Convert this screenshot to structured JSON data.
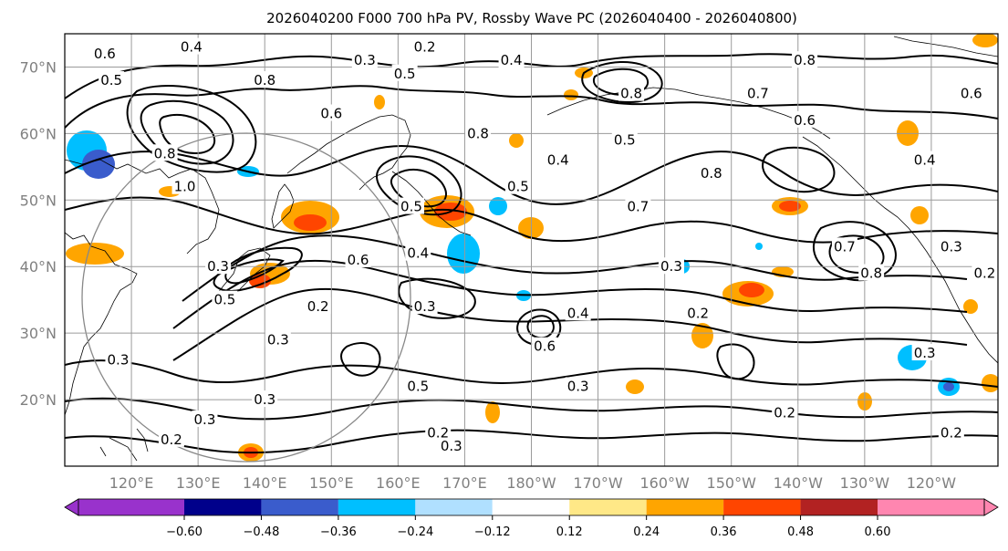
{
  "title": "2026040200 F000 700 hPa PV, Rossby Wave PC (2026040400 - 2026040800)",
  "map": {
    "lon_range": [
      110,
      250
    ],
    "lat_range": [
      10,
      75
    ],
    "lat_labels": [
      "20°N",
      "30°N",
      "40°N",
      "50°N",
      "60°N",
      "70°N"
    ],
    "lat_values": [
      20,
      30,
      40,
      50,
      60,
      70
    ],
    "lon_labels": [
      "120°E",
      "130°E",
      "140°E",
      "150°E",
      "160°E",
      "170°E",
      "180°W",
      "170°W",
      "160°W",
      "150°W",
      "140°W",
      "130°W",
      "120°W"
    ],
    "lon_values": [
      120,
      130,
      140,
      150,
      160,
      170,
      180,
      190,
      200,
      210,
      220,
      230,
      240
    ]
  },
  "contour_labels": [
    {
      "text": "0.6",
      "lon": 116,
      "lat": 72
    },
    {
      "text": "0.4",
      "lon": 129,
      "lat": 73
    },
    {
      "text": "0.5",
      "lon": 117,
      "lat": 68
    },
    {
      "text": "0.3",
      "lon": 155,
      "lat": 71
    },
    {
      "text": "0.2",
      "lon": 164,
      "lat": 73
    },
    {
      "text": "0.4",
      "lon": 177,
      "lat": 71
    },
    {
      "text": "0.5",
      "lon": 161,
      "lat": 69
    },
    {
      "text": "0.6",
      "lon": 150,
      "lat": 63
    },
    {
      "text": "0.8",
      "lon": 140,
      "lat": 68
    },
    {
      "text": "0.8",
      "lon": 125,
      "lat": 57
    },
    {
      "text": "1.0",
      "lon": 128,
      "lat": 52
    },
    {
      "text": "0.8",
      "lon": 195,
      "lat": 66
    },
    {
      "text": "0.8",
      "lon": 221,
      "lat": 71
    },
    {
      "text": "0.7",
      "lon": 214,
      "lat": 66
    },
    {
      "text": "0.6",
      "lon": 221,
      "lat": 62
    },
    {
      "text": "0.8",
      "lon": 172,
      "lat": 60
    },
    {
      "text": "0.4",
      "lon": 184,
      "lat": 56
    },
    {
      "text": "0.5",
      "lon": 194,
      "lat": 59
    },
    {
      "text": "0.8",
      "lon": 207,
      "lat": 54
    },
    {
      "text": "0.5",
      "lon": 162,
      "lat": 49
    },
    {
      "text": "0.5",
      "lon": 178,
      "lat": 52
    },
    {
      "text": "0.7",
      "lon": 196,
      "lat": 49
    },
    {
      "text": "0.4",
      "lon": 239,
      "lat": 56
    },
    {
      "text": "0.6",
      "lon": 246,
      "lat": 66
    },
    {
      "text": "0.6",
      "lon": 154,
      "lat": 41
    },
    {
      "text": "0.4",
      "lon": 163,
      "lat": 42
    },
    {
      "text": "0.7",
      "lon": 227,
      "lat": 43
    },
    {
      "text": "0.8",
      "lon": 231,
      "lat": 39
    },
    {
      "text": "0.3",
      "lon": 243,
      "lat": 43
    },
    {
      "text": "0.2",
      "lon": 248,
      "lat": 39
    },
    {
      "text": "0.3",
      "lon": 133,
      "lat": 40
    },
    {
      "text": "0.5",
      "lon": 134,
      "lat": 35
    },
    {
      "text": "0.2",
      "lon": 148,
      "lat": 34
    },
    {
      "text": "0.3",
      "lon": 164,
      "lat": 34
    },
    {
      "text": "0.3",
      "lon": 201,
      "lat": 40
    },
    {
      "text": "0.4",
      "lon": 187,
      "lat": 33
    },
    {
      "text": "0.2",
      "lon": 205,
      "lat": 33
    },
    {
      "text": "0.6",
      "lon": 182,
      "lat": 28
    },
    {
      "text": "0.3",
      "lon": 142,
      "lat": 29
    },
    {
      "text": "0.3",
      "lon": 239,
      "lat": 27
    },
    {
      "text": "0.3",
      "lon": 118,
      "lat": 26
    },
    {
      "text": "0.5",
      "lon": 163,
      "lat": 22
    },
    {
      "text": "0.3",
      "lon": 187,
      "lat": 22
    },
    {
      "text": "0.3",
      "lon": 140,
      "lat": 20
    },
    {
      "text": "0.3",
      "lon": 131,
      "lat": 17
    },
    {
      "text": "0.2",
      "lon": 218,
      "lat": 18
    },
    {
      "text": "0.2",
      "lon": 243,
      "lat": 15
    },
    {
      "text": "0.2",
      "lon": 126,
      "lat": 14
    },
    {
      "text": "0.3",
      "lon": 168,
      "lat": 13
    },
    {
      "text": "0.2",
      "lon": 166,
      "lat": 15
    }
  ],
  "colorbar": {
    "ticks": [
      "−0.60",
      "−0.48",
      "−0.36",
      "−0.24",
      "−0.12",
      "0.12",
      "0.24",
      "0.36",
      "0.48",
      "0.60"
    ],
    "colors": [
      "#9932cc",
      "#00008b",
      "#3a5ccc",
      "#00bfff",
      "#b0e0ff",
      "#ffffff",
      "#ffe887",
      "#ffa500",
      "#ff4500",
      "#b22222",
      "#ff86b0"
    ]
  },
  "anomaly_colors": {
    "neg_strong": "#3a5ccc",
    "neg": "#00bfff",
    "neg_light": "#b0e0ff",
    "pos_light": "#ffe887",
    "pos": "#ffa500",
    "pos_strong": "#ff4500"
  }
}
